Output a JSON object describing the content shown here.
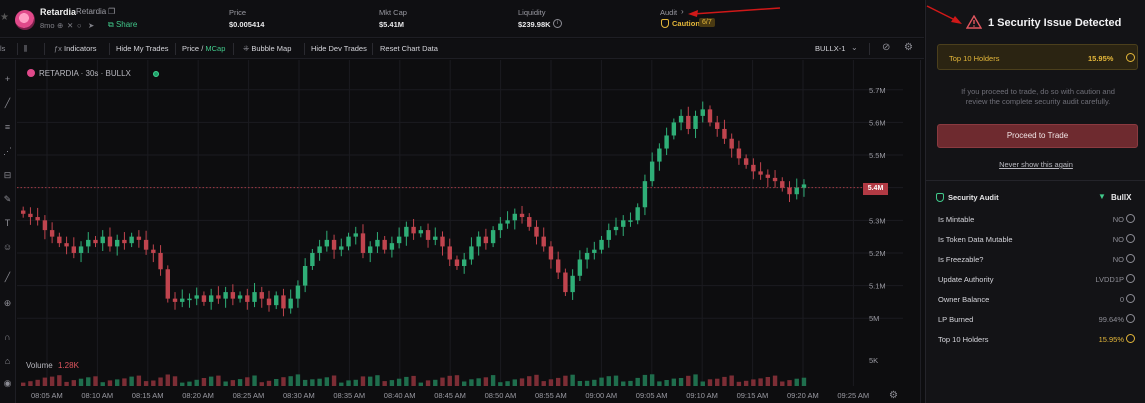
{
  "token": {
    "name": "Retardia",
    "ticker": "Retardia",
    "age": "8mo",
    "share": "Share"
  },
  "stats": [
    {
      "label": "Price",
      "value": "$0.005414"
    },
    {
      "label": "Mkt Cap",
      "value": "$5.41M"
    },
    {
      "label": "Liquidity",
      "value": "$239.98K"
    }
  ],
  "audit": {
    "label": "Audit",
    "status": "Caution",
    "score": "6/7"
  },
  "toolbar": {
    "indicators": "Indicators",
    "hide_trades": "Hide My Trades",
    "price": "Price",
    "slash": "/",
    "mcap": "MCap",
    "bubble_map": "Bubble Map",
    "hide_dev": "Hide Dev Trades",
    "reset": "Reset Chart Data",
    "source": "BULLX-1"
  },
  "chart": {
    "symbol": "RETARDIA · 30s · BULLX",
    "volume_label": "Volume",
    "volume_value": "1.28K",
    "current_price_label": "5.4M",
    "colors": {
      "up": "#2fae77",
      "down": "#c0444e",
      "grid": "#1b1b20"
    }
  },
  "chart_data": {
    "type": "candlestick",
    "y_ticks": [
      "5.7M",
      "5.6M",
      "5.5M",
      "5.4M",
      "5.3M",
      "5.2M",
      "5.1M",
      "5M"
    ],
    "volume_tick": "5K",
    "x_ticks": [
      "08:05 AM",
      "08:10 AM",
      "08:15 AM",
      "08:20 AM",
      "08:25 AM",
      "08:30 AM",
      "08:35 AM",
      "08:40 AM",
      "08:45 AM",
      "08:50 AM",
      "08:55 AM",
      "09:00 AM",
      "09:05 AM",
      "09:10 AM",
      "09:15 AM",
      "09:20 AM",
      "09:25 AM"
    ],
    "ylim": [
      4.97,
      5.73
    ],
    "current_price": 5.4,
    "closes": [
      5.32,
      5.31,
      5.3,
      5.27,
      5.25,
      5.23,
      5.22,
      5.2,
      5.22,
      5.24,
      5.23,
      5.25,
      5.22,
      5.24,
      5.23,
      5.25,
      5.24,
      5.21,
      5.2,
      5.15,
      5.06,
      5.05,
      5.06,
      5.06,
      5.07,
      5.05,
      5.07,
      5.06,
      5.08,
      5.06,
      5.07,
      5.05,
      5.08,
      5.06,
      5.04,
      5.07,
      5.03,
      5.06,
      5.1,
      5.16,
      5.2,
      5.22,
      5.24,
      5.21,
      5.22,
      5.25,
      5.26,
      5.2,
      5.22,
      5.24,
      5.21,
      5.23,
      5.25,
      5.28,
      5.26,
      5.27,
      5.24,
      5.25,
      5.22,
      5.18,
      5.16,
      5.18,
      5.22,
      5.25,
      5.23,
      5.27,
      5.29,
      5.3,
      5.32,
      5.31,
      5.28,
      5.25,
      5.22,
      5.18,
      5.14,
      5.08,
      5.13,
      5.18,
      5.2,
      5.21,
      5.24,
      5.27,
      5.28,
      5.3,
      5.3,
      5.34,
      5.42,
      5.48,
      5.52,
      5.56,
      5.6,
      5.62,
      5.58,
      5.62,
      5.64,
      5.6,
      5.58,
      5.55,
      5.52,
      5.49,
      5.47,
      5.45,
      5.44,
      5.43,
      5.42,
      5.4,
      5.38,
      5.4,
      5.41
    ]
  },
  "panel": {
    "issue_title": "1 Security Issue Detected",
    "holders_label": "Top 10 Holders",
    "holders_value": "15.95%",
    "warning_line1": "If you proceed to trade, do so with caution and",
    "warning_line2": "review the complete security audit carefully.",
    "proceed": "Proceed to Trade",
    "never_show": "Never show this again",
    "audit_heading": "Security Audit",
    "bullx_logo": "BullX",
    "rows": [
      {
        "label": "Is Mintable",
        "value": "NO"
      },
      {
        "label": "Is Token Data Mutable",
        "value": "NO"
      },
      {
        "label": "Is Freezable?",
        "value": "NO"
      },
      {
        "label": "Update Authority",
        "value": "LVDD1P"
      },
      {
        "label": "Owner Balance",
        "value": "0"
      },
      {
        "label": "LP Burned",
        "value": "99.64%"
      },
      {
        "label": "Top 10 Holders",
        "value": "15.95%"
      }
    ]
  },
  "icons": [
    "star-icon",
    "copy-icon",
    "globe-icon",
    "x-icon",
    "search-icon",
    "telegram-icon",
    "share-icon",
    "info-icon",
    "shield-icon",
    "chevron-right-icon",
    "warning-icon",
    "check-circle-icon",
    "settings-icon",
    "search-chart-icon"
  ]
}
